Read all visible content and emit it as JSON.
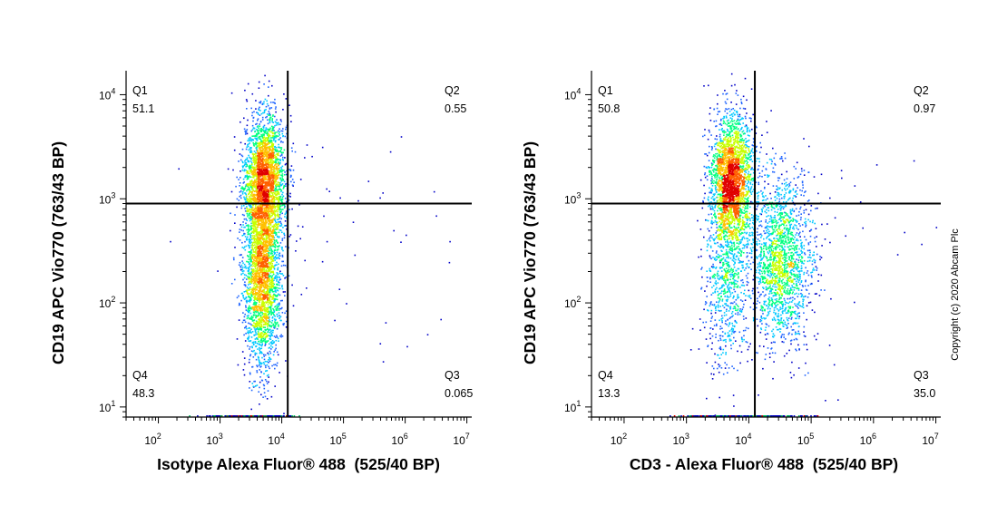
{
  "copyright": "Copyright (c) 2020 Abcam Plc",
  "chart_data": [
    {
      "type": "scatter",
      "subtype": "flow-cytometry-density-dot-plot",
      "xlabel": "Isotype Alexa Fluor® 488  (525/40 BP)",
      "ylabel": "CD19 APC Vio770 (763/43 BP)",
      "x_scale": "log",
      "y_scale": "log",
      "xlim": [
        30,
        12000000
      ],
      "ylim": [
        8,
        17000
      ],
      "x_ticks": [
        {
          "base": "10",
          "exp": "2",
          "value": 100
        },
        {
          "base": "10",
          "exp": "3",
          "value": 1000
        },
        {
          "base": "10",
          "exp": "4",
          "value": 10000
        },
        {
          "base": "10",
          "exp": "5",
          "value": 100000
        },
        {
          "base": "10",
          "exp": "6",
          "value": 1000000
        },
        {
          "base": "10",
          "exp": "7",
          "value": 10000000
        }
      ],
      "y_ticks": [
        {
          "base": "10",
          "exp": "1",
          "value": 10
        },
        {
          "base": "10",
          "exp": "2",
          "value": 100
        },
        {
          "base": "10",
          "exp": "3",
          "value": 1000
        },
        {
          "base": "10",
          "exp": "4",
          "value": 10000
        }
      ],
      "gate": {
        "x": 12500,
        "y": 900
      },
      "quadrants": [
        {
          "name": "Q1",
          "value": "51.1",
          "position": "top-left"
        },
        {
          "name": "Q2",
          "value": "0.55",
          "position": "top-right"
        },
        {
          "name": "Q4",
          "value": "48.3",
          "position": "bottom-left"
        },
        {
          "name": "Q3",
          "value": "0.065",
          "position": "bottom-right"
        }
      ],
      "populations": [
        {
          "x_center": 5200,
          "y_center": 1500,
          "x_spread": 0.17,
          "y_spread": 0.32,
          "weight": 0.51
        },
        {
          "x_center": 4600,
          "y_center": 180,
          "x_spread": 0.15,
          "y_spread": 0.42,
          "weight": 0.48
        },
        {
          "x_center": 60000,
          "y_center": 500,
          "x_spread": 1.0,
          "y_spread": 0.7,
          "weight": 0.01
        }
      ],
      "colors": [
        "#0000c8",
        "#1e64ff",
        "#00c8ff",
        "#00ff80",
        "#c8ff00",
        "#ffc000",
        "#ff6000",
        "#e00000"
      ]
    },
    {
      "type": "scatter",
      "subtype": "flow-cytometry-density-dot-plot",
      "xlabel": "CD3 - Alexa Fluor® 488  (525/40 BP)",
      "ylabel": "CD19 APC Vio770 (763/43 BP)",
      "x_scale": "log",
      "y_scale": "log",
      "xlim": [
        30,
        12000000
      ],
      "ylim": [
        8,
        17000
      ],
      "x_ticks": [
        {
          "base": "10",
          "exp": "2",
          "value": 100
        },
        {
          "base": "10",
          "exp": "3",
          "value": 1000
        },
        {
          "base": "10",
          "exp": "4",
          "value": 10000
        },
        {
          "base": "10",
          "exp": "5",
          "value": 100000
        },
        {
          "base": "10",
          "exp": "6",
          "value": 1000000
        },
        {
          "base": "10",
          "exp": "7",
          "value": 10000000
        }
      ],
      "y_ticks": [
        {
          "base": "10",
          "exp": "1",
          "value": 10
        },
        {
          "base": "10",
          "exp": "2",
          "value": 100
        },
        {
          "base": "10",
          "exp": "3",
          "value": 1000
        },
        {
          "base": "10",
          "exp": "4",
          "value": 10000
        }
      ],
      "gate": {
        "x": 12500,
        "y": 900
      },
      "quadrants": [
        {
          "name": "Q1",
          "value": "50.8",
          "position": "top-left"
        },
        {
          "name": "Q2",
          "value": "0.97",
          "position": "top-right"
        },
        {
          "name": "Q4",
          "value": "13.3",
          "position": "bottom-left"
        },
        {
          "name": "Q3",
          "value": "35.0",
          "position": "bottom-right"
        }
      ],
      "populations": [
        {
          "x_center": 5200,
          "y_center": 1500,
          "x_spread": 0.17,
          "y_spread": 0.32,
          "weight": 0.51
        },
        {
          "x_center": 4200,
          "y_center": 150,
          "x_spread": 0.17,
          "y_spread": 0.4,
          "weight": 0.13
        },
        {
          "x_center": 32000,
          "y_center": 260,
          "x_spread": 0.25,
          "y_spread": 0.4,
          "weight": 0.35
        },
        {
          "x_center": 60000,
          "y_center": 500,
          "x_spread": 1.0,
          "y_spread": 0.7,
          "weight": 0.01
        }
      ],
      "colors": [
        "#0000c8",
        "#1e64ff",
        "#00c8ff",
        "#00ff80",
        "#c8ff00",
        "#ffc000",
        "#ff6000",
        "#e00000"
      ]
    }
  ]
}
